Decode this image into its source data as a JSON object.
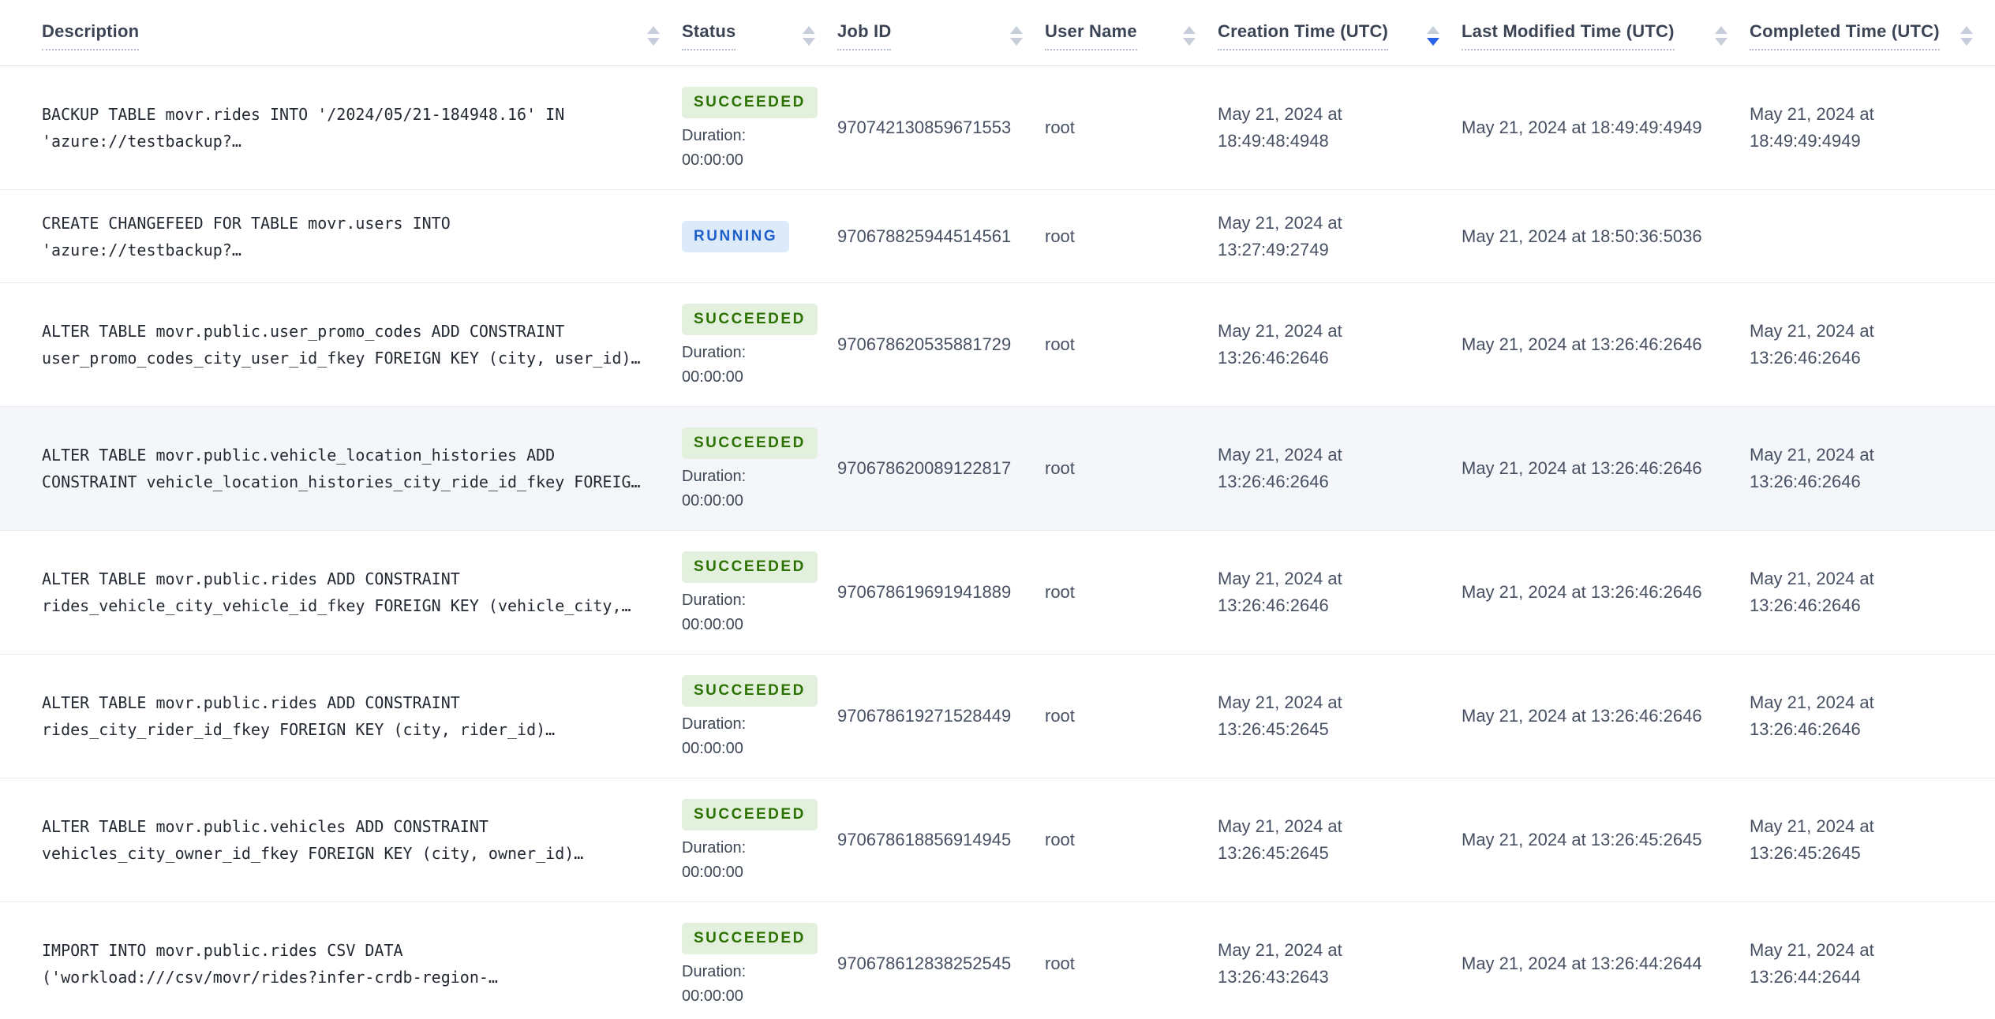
{
  "colors": {
    "succeeded_bg": "#e4f0de",
    "succeeded_text": "#2b7200",
    "running_bg": "#ddeafa",
    "running_text": "#1f5fc9",
    "active_sort": "#2962e8",
    "row_highlight": "#f4f6f9"
  },
  "table": {
    "duration_label": "Duration:",
    "columns": [
      {
        "label": "Description",
        "sort": "none"
      },
      {
        "label": "Status",
        "sort": "none"
      },
      {
        "label": "Job ID",
        "sort": "none"
      },
      {
        "label": "User Name",
        "sort": "none"
      },
      {
        "label": "Creation Time (UTC)",
        "sort": "desc"
      },
      {
        "label": "Last Modified Time (UTC)",
        "sort": "none"
      },
      {
        "label": "Completed Time (UTC)",
        "sort": "none"
      }
    ],
    "rows": [
      {
        "description": "BACKUP TABLE movr.rides INTO '/2024/05/21-184948.16' IN\n'azure://testbackup?…",
        "status": "SUCCEEDED",
        "duration": "00:00:00",
        "job_id": "970742130859671553",
        "user_name": "root",
        "creation_time": "May 21, 2024 at\n18:49:48:4948",
        "last_modified_time": "May 21, 2024 at 18:49:49:4949",
        "completed_time": "May 21, 2024 at\n18:49:49:4949",
        "highlighted": false
      },
      {
        "description": "CREATE CHANGEFEED FOR TABLE movr.users INTO\n'azure://testbackup?…",
        "status": "RUNNING",
        "duration": "",
        "job_id": "970678825944514561",
        "user_name": "root",
        "creation_time": "May 21, 2024 at\n13:27:49:2749",
        "last_modified_time": "May 21, 2024 at 18:50:36:5036",
        "completed_time": "",
        "highlighted": false
      },
      {
        "description": "ALTER TABLE movr.public.user_promo_codes ADD CONSTRAINT\nuser_promo_codes_city_user_id_fkey FOREIGN KEY (city, user_id)…",
        "status": "SUCCEEDED",
        "duration": "00:00:00",
        "job_id": "970678620535881729",
        "user_name": "root",
        "creation_time": "May 21, 2024 at\n13:26:46:2646",
        "last_modified_time": "May 21, 2024 at 13:26:46:2646",
        "completed_time": "May 21, 2024 at\n13:26:46:2646",
        "highlighted": false
      },
      {
        "description": "ALTER TABLE movr.public.vehicle_location_histories ADD\nCONSTRAINT vehicle_location_histories_city_ride_id_fkey FOREIG…",
        "status": "SUCCEEDED",
        "duration": "00:00:00",
        "job_id": "970678620089122817",
        "user_name": "root",
        "creation_time": "May 21, 2024 at\n13:26:46:2646",
        "last_modified_time": "May 21, 2024 at 13:26:46:2646",
        "completed_time": "May 21, 2024 at\n13:26:46:2646",
        "highlighted": true
      },
      {
        "description": "ALTER TABLE movr.public.rides ADD CONSTRAINT\nrides_vehicle_city_vehicle_id_fkey FOREIGN KEY (vehicle_city,…",
        "status": "SUCCEEDED",
        "duration": "00:00:00",
        "job_id": "970678619691941889",
        "user_name": "root",
        "creation_time": "May 21, 2024 at\n13:26:46:2646",
        "last_modified_time": "May 21, 2024 at 13:26:46:2646",
        "completed_time": "May 21, 2024 at\n13:26:46:2646",
        "highlighted": false
      },
      {
        "description": "ALTER TABLE movr.public.rides ADD CONSTRAINT\nrides_city_rider_id_fkey FOREIGN KEY (city, rider_id)…",
        "status": "SUCCEEDED",
        "duration": "00:00:00",
        "job_id": "970678619271528449",
        "user_name": "root",
        "creation_time": "May 21, 2024 at\n13:26:45:2645",
        "last_modified_time": "May 21, 2024 at 13:26:46:2646",
        "completed_time": "May 21, 2024 at\n13:26:46:2646",
        "highlighted": false
      },
      {
        "description": "ALTER TABLE movr.public.vehicles ADD CONSTRAINT\nvehicles_city_owner_id_fkey FOREIGN KEY (city, owner_id)…",
        "status": "SUCCEEDED",
        "duration": "00:00:00",
        "job_id": "970678618856914945",
        "user_name": "root",
        "creation_time": "May 21, 2024 at\n13:26:45:2645",
        "last_modified_time": "May 21, 2024 at 13:26:45:2645",
        "completed_time": "May 21, 2024 at\n13:26:45:2645",
        "highlighted": false
      },
      {
        "description": "IMPORT INTO movr.public.rides CSV DATA\n('workload:///csv/movr/rides?infer-crdb-region-…",
        "status": "SUCCEEDED",
        "duration": "00:00:00",
        "job_id": "970678612838252545",
        "user_name": "root",
        "creation_time": "May 21, 2024 at\n13:26:43:2643",
        "last_modified_time": "May 21, 2024 at 13:26:44:2644",
        "completed_time": "May 21, 2024 at\n13:26:44:2644",
        "highlighted": false
      }
    ]
  }
}
